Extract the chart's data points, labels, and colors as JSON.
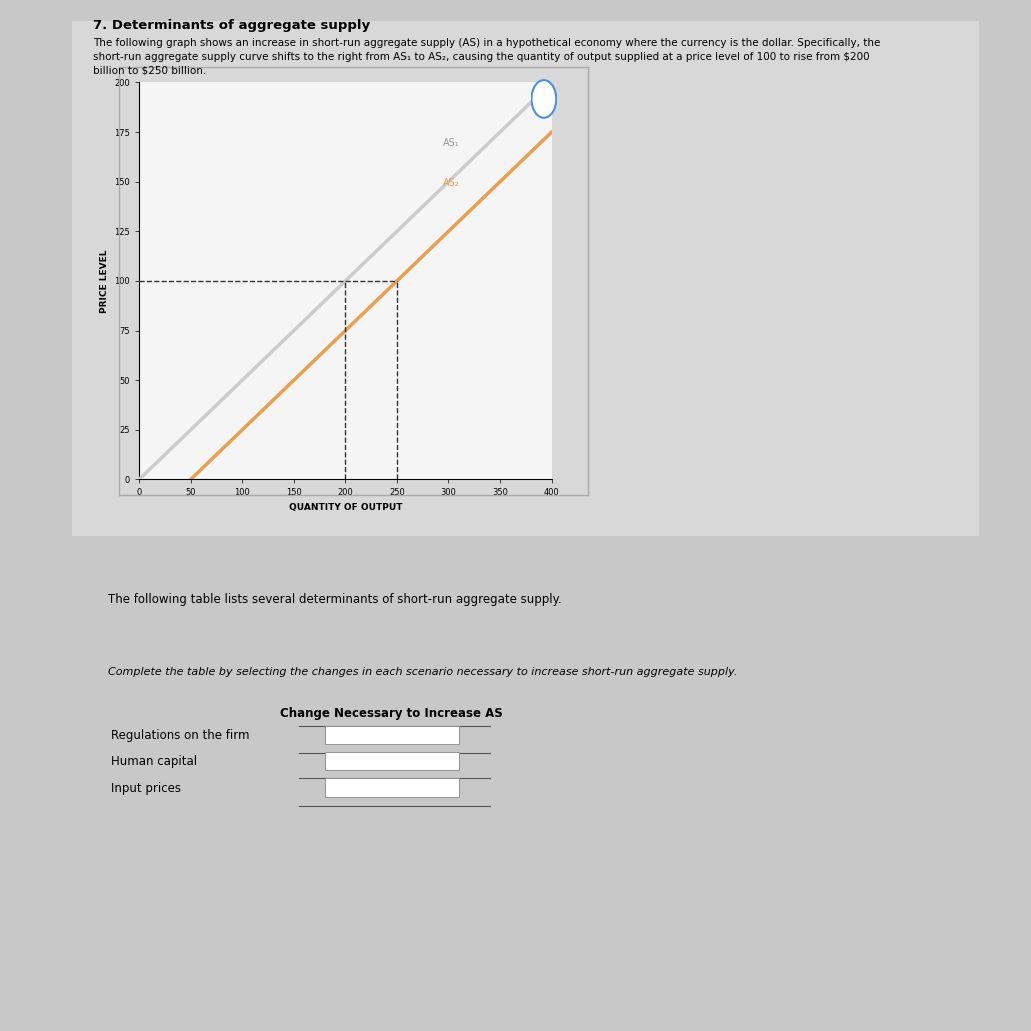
{
  "title": "7. Determinants of aggregate supply",
  "description_line1": "The following graph shows an increase in short-run aggregate supply (AS) in a hypothetical economy where the currency is the dollar. Specifically, the",
  "description_line2": "short-run aggregate supply curve shifts to the right from AS₁ to AS₂, causing the quantity of output supplied at a price level of 100 to rise from $200",
  "description_line3": "billion to $250 billion.",
  "graph_bg": "#f0f0f0",
  "outer_bg": "#e8e8e8",
  "panel_bg": "#d8d8d8",
  "white_panel": "#ffffff",
  "xlim": [
    0,
    400
  ],
  "ylim": [
    0,
    200
  ],
  "xticks": [
    0,
    50,
    100,
    150,
    200,
    250,
    300,
    350,
    400
  ],
  "yticks": [
    0,
    25,
    50,
    75,
    100,
    125,
    150,
    175,
    200
  ],
  "xlabel": "QUANTITY OF OUTPUT",
  "ylabel": "PRICE LEVEL",
  "as1_color": "#cccccc",
  "as2_color": "#e8a050",
  "as1_label": "AS₁",
  "as2_label": "AS₂",
  "dashed_color": "#333333",
  "price_level_ref": 100,
  "q1_ref": 200,
  "q2_ref": 250,
  "table_title": "The following table lists several determinants of short-run aggregate supply.",
  "table_instruction": "Complete the table by selecting the changes in each scenario necessary to increase short-run aggregate supply.",
  "table_column_header": "Change Necessary to Increase AS",
  "table_rows": [
    "Regulations on the firm",
    "Human capital",
    "Input prices"
  ],
  "question_mark_color": "#4a90d9",
  "section2_bg": "#e8e8e8"
}
